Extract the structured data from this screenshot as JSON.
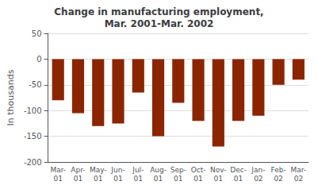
{
  "chart_data": {
    "type": "bar",
    "title": "Change in manufacturing employment,\nMar. 2001-Mar. 2002",
    "categories": [
      "Mar-\n01",
      "Apr-\n01",
      "May-\n01",
      "Jun-\n01",
      "Jul-\n01",
      "Aug-\n01",
      "Sep-\n01",
      "Oct-\n01",
      "Nov-\n01",
      "Dec-\n01",
      "Jan-\n02",
      "Feb-\n02",
      "Mar-\n02"
    ],
    "values": [
      -80,
      -105,
      -130,
      -125,
      -65,
      -150,
      -85,
      -120,
      -170,
      -120,
      -110,
      -50,
      -40
    ],
    "color": "#8B2500",
    "ylabel": "In thousands",
    "ylim": [
      -200,
      50
    ],
    "yticks": [
      -200,
      -150,
      -100,
      -50,
      0,
      50
    ],
    "grid": true
  }
}
